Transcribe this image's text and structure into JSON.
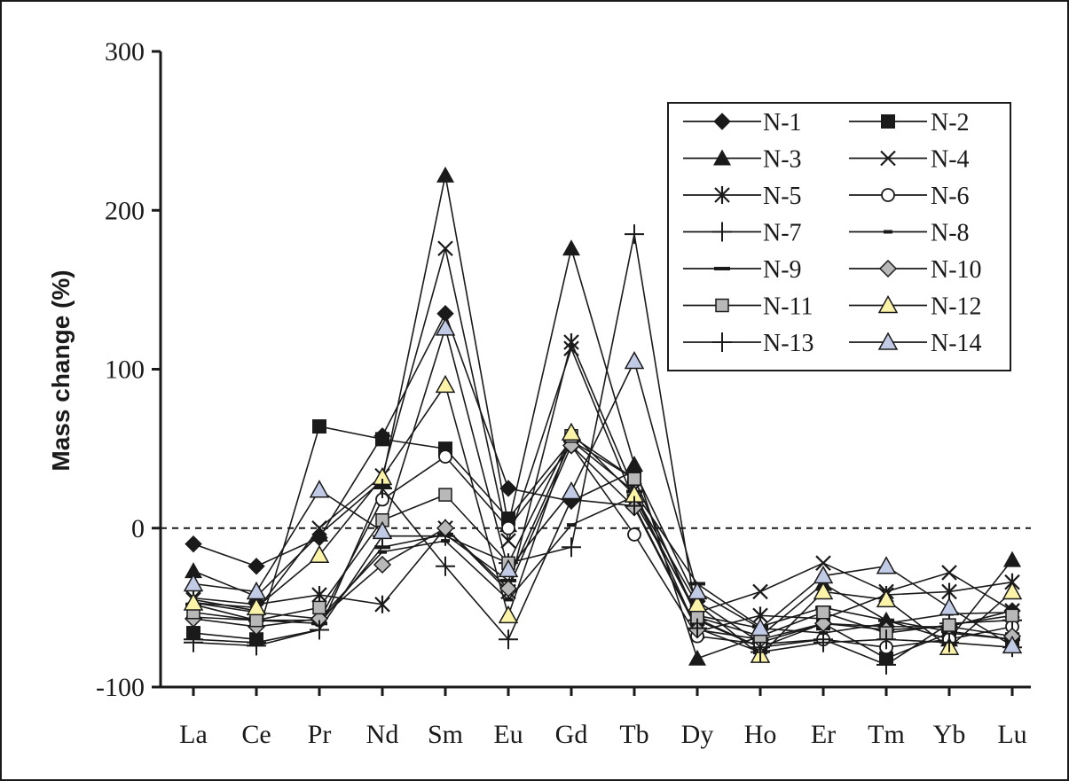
{
  "chart_data": {
    "type": "line",
    "ylabel": "Mass change (%)",
    "xlabel": "",
    "ylim": [
      -100,
      300
    ],
    "yticks": [
      "300",
      "200",
      "100",
      "0",
      "-100"
    ],
    "yticks_values": [
      300,
      200,
      100,
      0,
      -100
    ],
    "categories": [
      "La",
      "Ce",
      "Pr",
      "Nd",
      "Sm",
      "Eu",
      "Gd",
      "Tb",
      "Dy",
      "Ho",
      "Er",
      "Tm",
      "Yb",
      "Lu"
    ],
    "zero_line": "dashed",
    "legend_position": "top-right",
    "series": [
      {
        "name": "N-1",
        "marker": "diamond",
        "values": [
          -10,
          -24,
          -6,
          58,
          135,
          25,
          17,
          36,
          -46,
          -72,
          -60,
          -62,
          -62,
          -52
        ]
      },
      {
        "name": "N-2",
        "marker": "square",
        "values": [
          -66,
          -70,
          64,
          56,
          50,
          6,
          55,
          31,
          -57,
          -75,
          -60,
          -82,
          -66,
          -70
        ]
      },
      {
        "name": "N-3",
        "marker": "triangle",
        "values": [
          -27,
          -43,
          -4,
          30,
          222,
          2,
          176,
          40,
          -82,
          -68,
          -35,
          -58,
          -70,
          -20
        ]
      },
      {
        "name": "N-4",
        "marker": "x",
        "values": [
          -45,
          -52,
          0,
          33,
          176,
          -8,
          113,
          17,
          -53,
          -40,
          -22,
          -40,
          -28,
          -52
        ]
      },
      {
        "name": "N-5",
        "marker": "asterisk",
        "values": [
          -44,
          -48,
          -42,
          -48,
          0,
          -40,
          117,
          24,
          -65,
          -55,
          -57,
          -42,
          -40,
          -34
        ]
      },
      {
        "name": "N-6",
        "marker": "circle",
        "values": [
          -56,
          -58,
          -58,
          18,
          45,
          0,
          52,
          -4,
          -68,
          -73,
          -70,
          -75,
          -70,
          -62
        ]
      },
      {
        "name": "N-7",
        "marker": "plus",
        "values": [
          -70,
          -72,
          -64,
          -5,
          -5,
          -22,
          -12,
          185,
          -58,
          -75,
          -70,
          -86,
          -60,
          -58
        ]
      },
      {
        "name": "N-8",
        "marker": "short-dash",
        "values": [
          -47,
          -53,
          -57,
          -15,
          -8,
          -45,
          2,
          20,
          -55,
          -63,
          -66,
          -60,
          -54,
          -53
        ]
      },
      {
        "name": "N-9",
        "marker": "dash",
        "values": [
          -48,
          -58,
          -60,
          -12,
          -4,
          -33,
          55,
          23,
          -35,
          -62,
          -50,
          -58,
          -65,
          -70
        ]
      },
      {
        "name": "N-10",
        "marker": "diamond-gray",
        "values": [
          -57,
          -62,
          -57,
          -23,
          0,
          -38,
          52,
          13,
          -64,
          -70,
          -60,
          -64,
          -62,
          -68
        ]
      },
      {
        "name": "N-11",
        "marker": "square-gray",
        "values": [
          -53,
          -58,
          -50,
          5,
          21,
          -22,
          58,
          31,
          -56,
          -68,
          -53,
          -66,
          -61,
          -55
        ]
      },
      {
        "name": "N-12",
        "marker": "triangle-yellow",
        "values": [
          -47,
          -50,
          -17,
          32,
          90,
          -55,
          60,
          21,
          -48,
          -80,
          -40,
          -45,
          -75,
          -40
        ]
      },
      {
        "name": "N-13",
        "marker": "plus",
        "values": [
          -72,
          -74,
          -64,
          25,
          -24,
          -70,
          18,
          14,
          -63,
          -78,
          -72,
          -70,
          -72,
          -75
        ]
      },
      {
        "name": "N-14",
        "marker": "triangle-blue",
        "values": [
          -35,
          -40,
          24,
          -2,
          126,
          -26,
          23,
          105,
          -40,
          -63,
          -30,
          -24,
          -50,
          -74
        ]
      }
    ],
    "colors": {
      "line": "#1a1a1a",
      "marker_fill_black": "#1a1a1a",
      "marker_fill_gray": "#b8b8b8",
      "marker_fill_yellow": "#fbf3a8",
      "marker_fill_blue": "#c2cbe6"
    }
  }
}
